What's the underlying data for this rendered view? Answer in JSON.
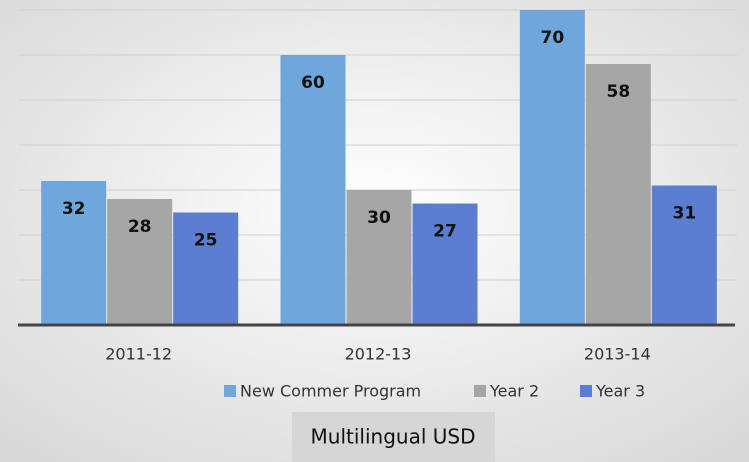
{
  "chart_data": {
    "type": "bar",
    "title": "Multilingual USD",
    "categories": [
      "2011-12",
      "2012-13",
      "2013-14"
    ],
    "series": [
      {
        "name": "New Commer Program",
        "color": "#6fa7dc",
        "values": [
          32,
          60,
          70
        ]
      },
      {
        "name": "Year 2",
        "color": "#a6a6a6",
        "values": [
          28,
          30,
          58
        ]
      },
      {
        "name": "Year 3",
        "color": "#5b7ed0",
        "values": [
          25,
          27,
          31
        ]
      }
    ],
    "ylim": [
      0,
      70
    ],
    "yticks": [
      0,
      10,
      20,
      30,
      40,
      50,
      60,
      70
    ],
    "grid": true,
    "legend": "bottom"
  }
}
